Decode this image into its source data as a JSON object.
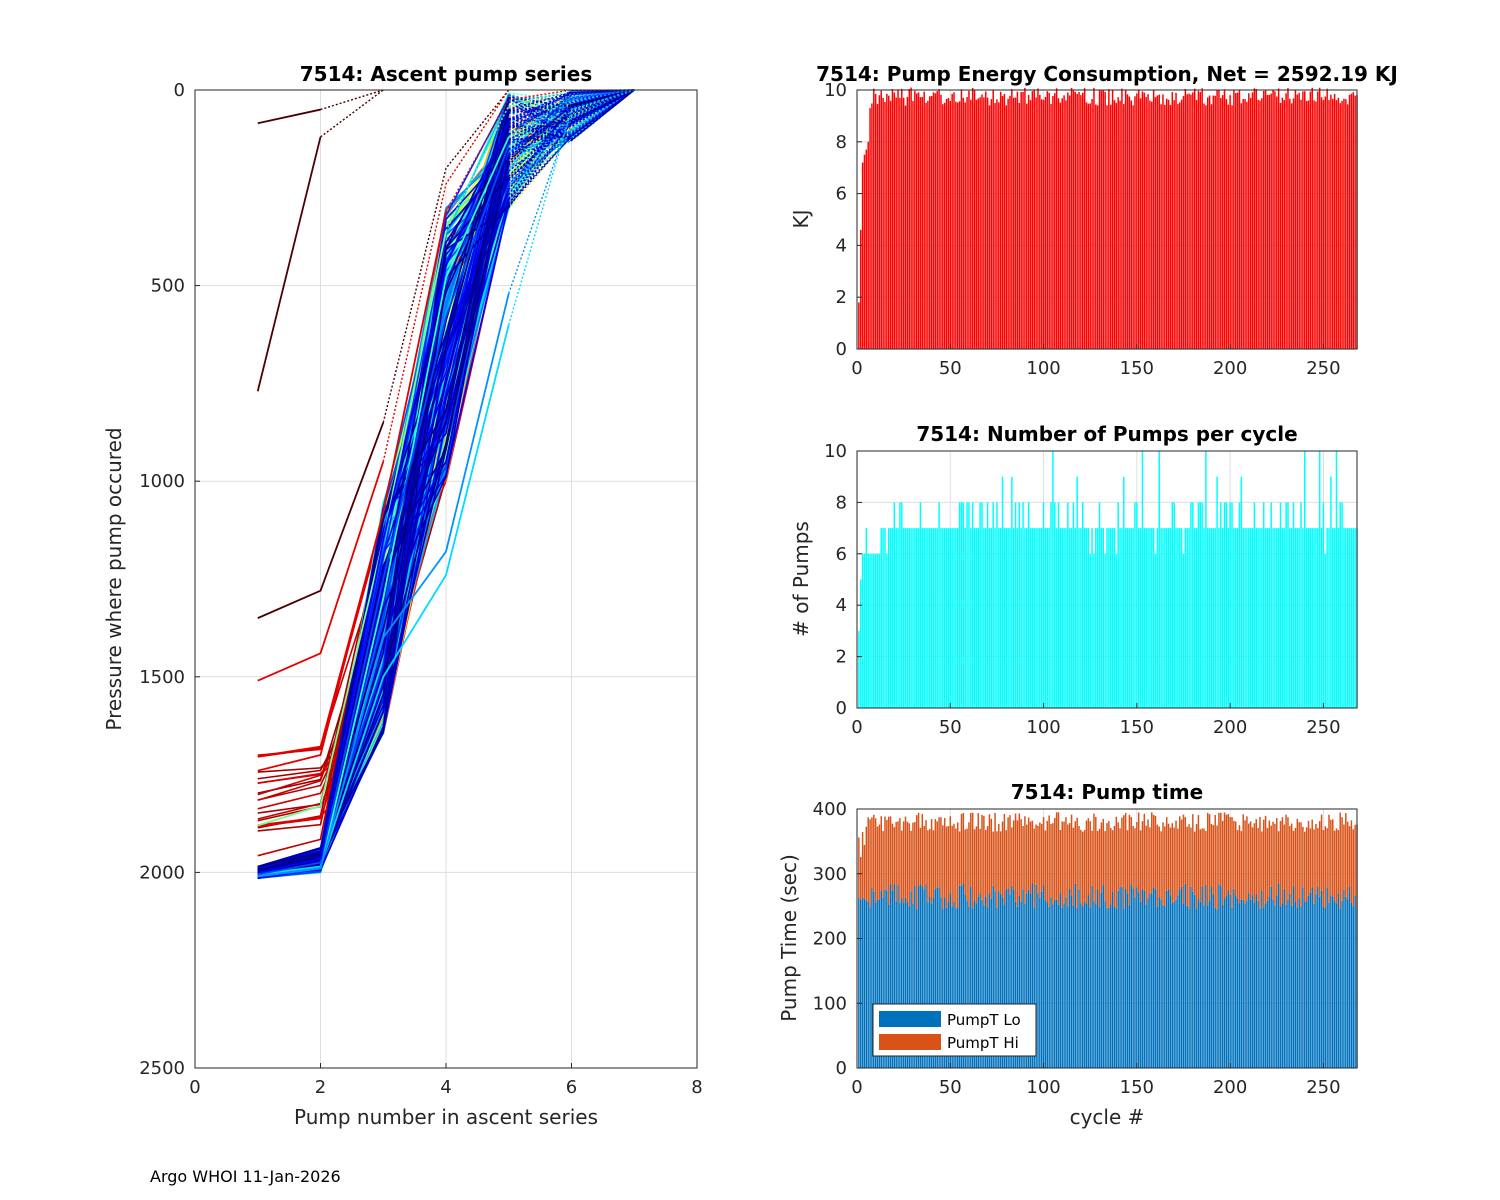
{
  "footer": "Argo WHOI 11-Jan-2026",
  "colors": {
    "energy": "#ff0000",
    "pumps": "#00ffff",
    "lo": "#0072bd",
    "hi": "#d95319",
    "grid": "#dedede",
    "axis": "#262626"
  },
  "chart_data": [
    {
      "type": "line",
      "title": "7514: Ascent pump series",
      "xlabel": "Pump number in ascent series",
      "ylabel": "Pressure where pump occured",
      "xlim": [
        0,
        8
      ],
      "ylim": [
        0,
        2500
      ],
      "y_reversed": true,
      "xticks": [
        0,
        2,
        4,
        6,
        8
      ],
      "yticks": [
        0,
        500,
        1000,
        1500,
        2000,
        2500
      ],
      "grid": true,
      "n_series": 268,
      "note": "one line per cycle, colored by cycle index (jet colormap); dotted segments are the final shallow pumps",
      "representative_series": [
        {
          "name": "cycle 1",
          "x": [
            1,
            2,
            3
          ],
          "y": [
            85,
            50,
            0
          ]
        },
        {
          "name": "cycle 2",
          "x": [
            1,
            2,
            3
          ],
          "y": [
            770,
            120,
            0
          ]
        },
        {
          "name": "cycle 3",
          "x": [
            1,
            2,
            3,
            4,
            5
          ],
          "y": [
            1350,
            1280,
            850,
            200,
            0
          ]
        },
        {
          "name": "cycle 4",
          "x": [
            1,
            2,
            3,
            4,
            5
          ],
          "y": [
            1510,
            1440,
            950,
            240,
            0
          ]
        },
        {
          "name": "cycle 10",
          "x": [
            1,
            2,
            3,
            4,
            5,
            6
          ],
          "y": [
            1740,
            1700,
            1080,
            310,
            25,
            0
          ]
        },
        {
          "name": "cycle 20",
          "x": [
            1,
            2,
            3,
            4,
            5,
            6
          ],
          "y": [
            1880,
            1830,
            1150,
            360,
            40,
            0
          ]
        },
        {
          "name": "cycle 60",
          "x": [
            1,
            2,
            3,
            4,
            5,
            6,
            7
          ],
          "y": [
            2010,
            1990,
            1300,
            480,
            120,
            20,
            0
          ]
        },
        {
          "name": "cycle 90",
          "x": [
            1,
            2,
            3,
            4,
            5,
            6,
            7
          ],
          "y": [
            2005,
            1985,
            1500,
            1240,
            600,
            50,
            0
          ]
        },
        {
          "name": "cycle 130",
          "x": [
            1,
            2,
            3,
            4,
            5,
            6,
            7
          ],
          "y": [
            2010,
            1990,
            1400,
            1180,
            520,
            60,
            0
          ]
        },
        {
          "name": "cycle 200",
          "x": [
            1,
            2,
            3,
            4,
            5,
            6,
            7
          ],
          "y": [
            2005,
            1975,
            1250,
            580,
            140,
            20,
            0
          ]
        },
        {
          "name": "cycle 268",
          "x": [
            1,
            2,
            3,
            4,
            5,
            6,
            7
          ],
          "y": [
            2000,
            1965,
            1150,
            450,
            80,
            10,
            0
          ]
        }
      ]
    },
    {
      "type": "bar",
      "title": "7514: Pump Energy Consumption,  Net = 2592.19 KJ",
      "xlabel": "",
      "ylabel": "KJ",
      "xlim": [
        0,
        268
      ],
      "ylim": [
        0,
        10
      ],
      "xticks": [
        0,
        50,
        100,
        150,
        200,
        250
      ],
      "yticks": [
        0,
        2,
        4,
        6,
        8,
        10
      ],
      "grid": true,
      "n_cycles": 268,
      "net_kj": 2592.19,
      "cycle_profile": {
        "cycles_1_to_7_ramp": [
          1.8,
          4.6,
          7.2,
          7.5,
          7.7,
          8.0,
          9.3
        ],
        "typical_range_after_cycle_8": [
          9.4,
          10.1
        ]
      }
    },
    {
      "type": "bar",
      "title": "7514: Number of Pumps per cycle",
      "xlabel": "",
      "ylabel": "# of Pumps",
      "xlim": [
        0,
        268
      ],
      "ylim": [
        0,
        10
      ],
      "xticks": [
        0,
        50,
        100,
        150,
        200,
        250
      ],
      "yticks": [
        0,
        2,
        4,
        6,
        8,
        10
      ],
      "grid": true,
      "n_cycles": 268,
      "cycle_profile": {
        "cycles_1_to_3": [
          3,
          5,
          6
        ],
        "typical": 7,
        "range": [
          6,
          10
        ]
      }
    },
    {
      "type": "bar",
      "stacked": true,
      "title": "7514: Pump time",
      "xlabel": "cycle #",
      "ylabel": "Pump Time (sec)",
      "xlim": [
        0,
        268
      ],
      "ylim": [
        0,
        400
      ],
      "xticks": [
        0,
        50,
        100,
        150,
        200,
        250
      ],
      "yticks": [
        0,
        100,
        200,
        300,
        400
      ],
      "grid": true,
      "legend": [
        "PumpT Lo",
        "PumpT Hi"
      ],
      "legend_loc": "bottom-left",
      "n_cycles": 268,
      "cycle_profile": {
        "lo_typical_range": [
          245,
          285
        ],
        "total_typical_range": [
          365,
          395
        ]
      }
    }
  ]
}
